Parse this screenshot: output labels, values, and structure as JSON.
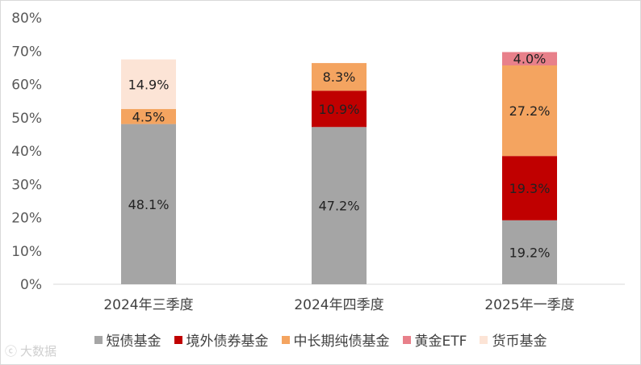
{
  "chart_data": {
    "type": "stacked-bar",
    "categories": [
      "2024年三季度",
      "2024年四季度",
      "2025年一季度"
    ],
    "series": [
      {
        "name": "短债基金",
        "color": "#a5a5a5",
        "values": [
          48.1,
          47.2,
          19.2
        ],
        "labels": [
          "48.1%",
          "47.2%",
          "19.2%"
        ]
      },
      {
        "name": "境外债券基金",
        "color": "#c00000",
        "values": [
          0,
          10.9,
          19.3
        ],
        "labels": [
          "",
          "10.9%",
          "19.3%"
        ]
      },
      {
        "name": "中长期纯债基金",
        "color": "#f4a460",
        "values": [
          4.5,
          8.3,
          27.2
        ],
        "labels": [
          "4.5%",
          "8.3%",
          "27.2%"
        ]
      },
      {
        "name": "黄金ETF",
        "color": "#e8808a",
        "values": [
          0,
          0,
          4.0
        ],
        "labels": [
          "",
          "",
          "4.0%"
        ]
      },
      {
        "name": "货币基金",
        "color": "#fce4d6",
        "values": [
          14.9,
          0,
          0
        ],
        "labels": [
          "14.9%",
          "",
          ""
        ]
      }
    ],
    "ylim": [
      0,
      80
    ],
    "yticks": [
      "0%",
      "10%",
      "20%",
      "30%",
      "40%",
      "50%",
      "60%",
      "70%",
      "80%"
    ],
    "ytick_values": [
      0,
      10,
      20,
      30,
      40,
      50,
      60,
      70,
      80
    ],
    "grid": false,
    "legend_position": "bottom"
  },
  "watermark": "大数据"
}
